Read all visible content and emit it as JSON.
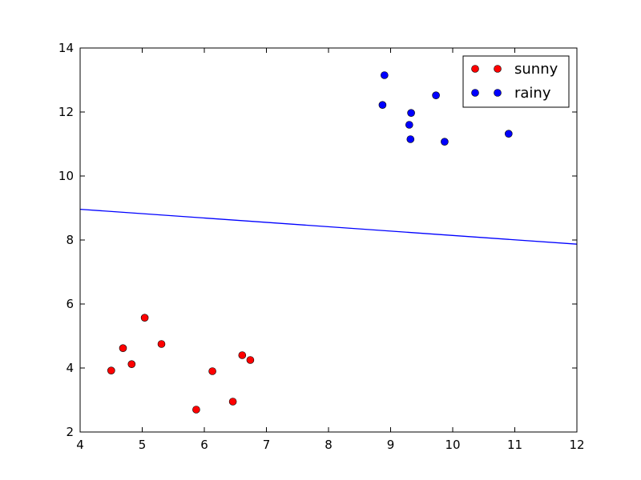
{
  "chart_data": {
    "type": "scatter",
    "title": "",
    "xlabel": "",
    "ylabel": "",
    "xlim": [
      4,
      12
    ],
    "ylim": [
      2,
      14
    ],
    "xticks": [
      "4",
      "5",
      "6",
      "7",
      "8",
      "9",
      "10",
      "11",
      "12"
    ],
    "yticks": [
      "2",
      "4",
      "6",
      "8",
      "10",
      "12",
      "14"
    ],
    "grid": false,
    "legend_position": "top-right",
    "series": [
      {
        "name": "sunny",
        "color": "#ff0000",
        "marker": "circle",
        "points": [
          {
            "x": 4.5,
            "y": 3.92
          },
          {
            "x": 4.69,
            "y": 4.62
          },
          {
            "x": 4.83,
            "y": 4.12
          },
          {
            "x": 5.04,
            "y": 5.57
          },
          {
            "x": 5.31,
            "y": 4.75
          },
          {
            "x": 5.87,
            "y": 2.7
          },
          {
            "x": 6.13,
            "y": 3.9
          },
          {
            "x": 6.46,
            "y": 2.95
          },
          {
            "x": 6.61,
            "y": 4.4
          },
          {
            "x": 6.74,
            "y": 4.25
          }
        ]
      },
      {
        "name": "rainy",
        "color": "#0000ff",
        "marker": "circle",
        "points": [
          {
            "x": 8.87,
            "y": 12.22
          },
          {
            "x": 8.9,
            "y": 13.15
          },
          {
            "x": 9.3,
            "y": 11.6
          },
          {
            "x": 9.32,
            "y": 11.15
          },
          {
            "x": 9.33,
            "y": 11.97
          },
          {
            "x": 9.73,
            "y": 12.52
          },
          {
            "x": 9.87,
            "y": 11.07
          },
          {
            "x": 10.9,
            "y": 11.32
          }
        ]
      }
    ],
    "lines": [
      {
        "color": "#0000ff",
        "points": [
          {
            "x": 4,
            "y": 8.96
          },
          {
            "x": 12,
            "y": 7.87
          }
        ]
      }
    ]
  }
}
